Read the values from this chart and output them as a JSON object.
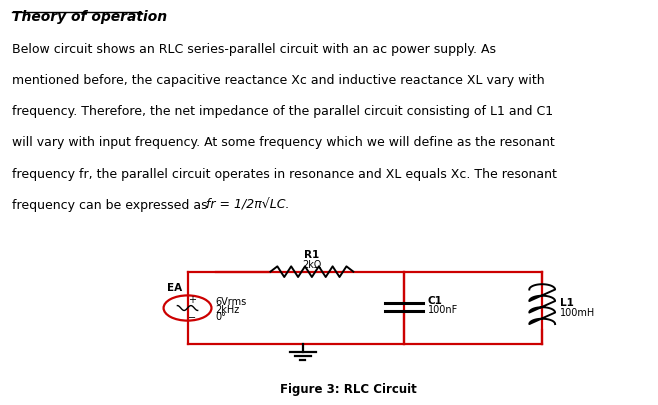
{
  "title": "Theory of operation",
  "lines": [
    "Below circuit shows an RLC series-parallel circuit with an ac power supply. As",
    "mentioned before, the capacitive reactance Xc and inductive reactance XL vary with",
    "frequency. Therefore, the net impedance of the parallel circuit consisting of L1 and C1",
    "will vary with input frequency. At some frequency which we will define as the resonant",
    "frequency fr, the parallel circuit operates in resonance and XL equals Xc. The resonant"
  ],
  "last_line_plain": "frequency can be expressed as ",
  "last_line_italic": "fr = 1/2π√LC.",
  "figure_label": "Figure 3: RLC Circuit",
  "bg_color": "#ffffff",
  "text_color": "#000000",
  "circuit_color": "#cc0000",
  "r1_label": "R1",
  "r1_value": "2kΩ",
  "source_label": "EA",
  "source_v": "6Vrms",
  "source_f": "2kHz",
  "source_ph": "0°",
  "c1_label": "C1",
  "c1_value": "100nF",
  "l1_label": "L1",
  "l1_value": "100mH"
}
